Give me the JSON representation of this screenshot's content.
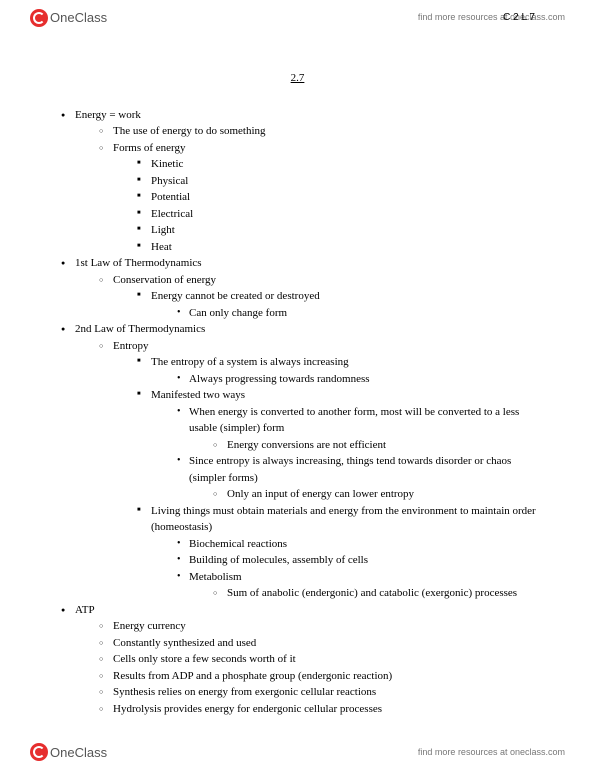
{
  "page_code": "C 2 L 7",
  "logo_text": "OneClass",
  "resource_link": "find more resources at oneclass.com",
  "title": "2.7",
  "outline": {
    "i0": "Energy = work",
    "i0_0": "The use of energy to do something",
    "i0_1": "Forms of energy",
    "i0_1_0": "Kinetic",
    "i0_1_1": "Physical",
    "i0_1_2": "Potential",
    "i0_1_3": "Electrical",
    "i0_1_4": "Light",
    "i0_1_5": "Heat",
    "i1": "1st Law of Thermodynamics",
    "i1_0": "Conservation of energy",
    "i1_0_0": "Energy cannot be created or destroyed",
    "i1_0_0_0": "Can only change form",
    "i2": "2nd Law of Thermodynamics",
    "i2_0": "Entropy",
    "i2_0_0": "The entropy of a system is always increasing",
    "i2_0_0_0": "Always progressing towards randomness",
    "i2_0_1": "Manifested two ways",
    "i2_0_1_0": "When energy is converted to another form, most will be converted to a less usable (simpler) form",
    "i2_0_1_0_0": "Energy conversions are not efficient",
    "i2_0_1_1": "Since entropy is always increasing, things tend towards disorder or chaos (simpler forms)",
    "i2_0_1_1_0": "Only an input of energy can lower entropy",
    "i2_0_2": "Living things must obtain materials and energy from the environment to maintain order (homeostasis)",
    "i2_0_2_0": "Biochemical reactions",
    "i2_0_2_1": "Building of molecules, assembly of cells",
    "i2_0_2_2": "Metabolism",
    "i2_0_2_2_0": "Sum of anabolic (endergonic) and catabolic (exergonic) processes",
    "i3": "ATP",
    "i3_0": "Energy currency",
    "i3_1": "Constantly synthesized and used",
    "i3_2": "Cells only store a few seconds worth of it",
    "i3_3": "Results from ADP and a phosphate group (endergonic reaction)",
    "i3_4": "Synthesis relies on energy from exergonic cellular reactions",
    "i3_5": "Hydrolysis provides energy for endergonic cellular processes"
  }
}
